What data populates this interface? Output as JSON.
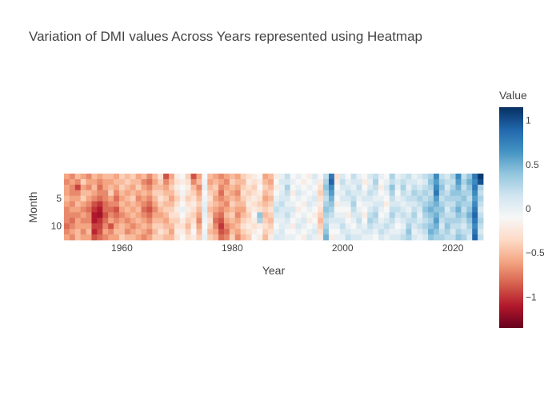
{
  "chart_data": {
    "type": "heatmap",
    "title": "Variation of DMI values Across Years represented using Heatmap",
    "xlabel": "Year",
    "ylabel": "Month",
    "colorbar_title": "Value",
    "x_range": [
      1949.5,
      2025.5
    ],
    "y_range": [
      0.5,
      12.5
    ],
    "x_ticks": [
      1960,
      1980,
      2000,
      2020
    ],
    "y_ticks": [
      5,
      10
    ],
    "colorbar_ticks": [
      1,
      0.5,
      0,
      -0.5,
      -1
    ],
    "zmin": -1.35,
    "zmax": 1.15,
    "colorscale": [
      "#67001f",
      "#b2182b",
      "#d6604d",
      "#f4a582",
      "#fddbc7",
      "#f7f7f7",
      "#d1e5f0",
      "#92c5de",
      "#4393c3",
      "#2166ac",
      "#053061"
    ],
    "years": [
      1950,
      1951,
      1952,
      1953,
      1954,
      1955,
      1956,
      1957,
      1958,
      1959,
      1960,
      1961,
      1962,
      1963,
      1964,
      1965,
      1966,
      1967,
      1968,
      1969,
      1970,
      1971,
      1972,
      1973,
      1974,
      1975,
      1976,
      1977,
      1978,
      1979,
      1980,
      1981,
      1982,
      1983,
      1984,
      1985,
      1986,
      1987,
      1988,
      1989,
      1990,
      1991,
      1992,
      1993,
      1994,
      1995,
      1996,
      1997,
      1998,
      1999,
      2000,
      2001,
      2002,
      2003,
      2004,
      2005,
      2006,
      2007,
      2008,
      2009,
      2010,
      2011,
      2012,
      2013,
      2014,
      2015,
      2016,
      2017,
      2018,
      2019,
      2020,
      2021,
      2022,
      2023,
      2024,
      2025
    ],
    "months": [
      1,
      2,
      3,
      4,
      5,
      6,
      7,
      8,
      9,
      10,
      11,
      12
    ],
    "values": [
      [
        -0.6,
        -0.7,
        -0.6,
        -0.6,
        -0.5,
        -0.6,
        -0.7,
        -0.7,
        -0.7,
        -0.8,
        -0.7,
        -0.6
      ],
      [
        -0.7,
        -0.6,
        -0.7,
        -0.7,
        -0.6,
        -0.7,
        -0.6,
        -0.7,
        -0.8,
        -0.7,
        -0.6,
        -0.7
      ],
      [
        -0.5,
        -0.7,
        -0.95,
        -0.7,
        -0.6,
        -0.5,
        -0.6,
        -0.7,
        -0.6,
        -0.6,
        -0.5,
        -0.5
      ],
      [
        -0.6,
        -0.4,
        -0.6,
        -0.5,
        -0.4,
        -0.6,
        -0.7,
        -0.6,
        -0.7,
        -0.6,
        -0.7,
        -0.6
      ],
      [
        -0.7,
        -0.6,
        -0.7,
        -0.5,
        -0.6,
        -0.7,
        -0.8,
        -0.7,
        -0.7,
        -0.6,
        -0.5,
        -0.6
      ],
      [
        -0.5,
        -0.6,
        -0.5,
        -0.6,
        -0.7,
        -0.9,
        -1.0,
        -1.1,
        -1.1,
        -0.95,
        -1.05,
        -0.9
      ],
      [
        -0.6,
        -0.7,
        -0.8,
        -0.7,
        -0.8,
        -1.0,
        -1.1,
        -1.15,
        -1.0,
        -0.95,
        -0.9,
        -0.8
      ],
      [
        -0.5,
        -0.6,
        -0.6,
        -0.7,
        -0.7,
        -0.8,
        -0.8,
        -0.9,
        -0.8,
        -0.7,
        -0.6,
        -0.7
      ],
      [
        -0.5,
        -0.6,
        -0.5,
        -0.4,
        -0.6,
        -0.7,
        -0.8,
        -0.7,
        -0.6,
        -0.9,
        -0.7,
        -0.6
      ],
      [
        -0.6,
        -0.5,
        -0.6,
        -0.7,
        -0.8,
        -0.7,
        -0.9,
        -0.8,
        -0.7,
        -0.6,
        -0.5,
        -0.6
      ],
      [
        -0.4,
        -0.5,
        -0.4,
        -0.5,
        -0.6,
        -0.5,
        -0.6,
        -0.7,
        -0.6,
        -0.5,
        -0.5,
        -0.4
      ],
      [
        -0.5,
        -0.4,
        -0.5,
        -0.6,
        -0.5,
        -0.6,
        -0.5,
        -0.6,
        -0.7,
        -0.6,
        -0.7,
        -0.5
      ],
      [
        -0.4,
        -0.5,
        -0.6,
        -0.5,
        -0.4,
        -0.5,
        -0.6,
        -0.5,
        -0.6,
        -0.7,
        -0.6,
        -0.5
      ],
      [
        -0.6,
        -0.5,
        -0.4,
        -0.6,
        -0.7,
        -0.6,
        -0.5,
        -0.6,
        -0.5,
        -0.6,
        -0.5,
        -0.6
      ],
      [
        -0.5,
        -0.7,
        -0.6,
        -0.5,
        -0.6,
        -0.7,
        -0.8,
        -0.7,
        -0.6,
        -0.5,
        -0.6,
        -0.7
      ],
      [
        -0.7,
        -0.8,
        -0.7,
        -0.6,
        -0.7,
        -0.8,
        -0.9,
        -0.8,
        -0.7,
        -0.6,
        -0.7,
        -0.6
      ],
      [
        -0.5,
        -0.6,
        -0.5,
        -0.4,
        -0.5,
        -0.6,
        -0.7,
        -0.6,
        -0.5,
        -0.4,
        -0.5,
        -0.4
      ],
      [
        -0.3,
        -0.4,
        -0.5,
        -0.4,
        -0.3,
        -0.4,
        -0.5,
        -0.6,
        -0.5,
        -0.4,
        -0.3,
        -0.4
      ],
      [
        -0.9,
        -0.7,
        -0.6,
        -0.5,
        -0.4,
        -0.5,
        -0.4,
        -0.5,
        -0.6,
        -0.5,
        -0.4,
        -0.5
      ],
      [
        -0.6,
        -0.5,
        -0.4,
        -0.5,
        -0.6,
        -0.5,
        -0.4,
        -0.3,
        -0.4,
        -0.5,
        -0.6,
        -0.5
      ],
      [
        -0.2,
        -0.3,
        -0.2,
        -0.3,
        -0.4,
        -0.3,
        -0.2,
        -0.3,
        -0.4,
        -0.3,
        -0.2,
        -0.3
      ],
      [
        -0.1,
        -0.2,
        -0.1,
        -0.05,
        -0.2,
        -0.1,
        0.0,
        -0.1,
        -0.2,
        -0.3,
        -0.2,
        -0.1
      ],
      [
        -0.4,
        -0.3,
        -0.2,
        -0.3,
        -0.4,
        -0.3,
        -0.2,
        -0.3,
        -0.4,
        -0.5,
        -0.4,
        -0.3
      ],
      [
        -0.9,
        -0.7,
        -0.5,
        -0.4,
        -0.3,
        -0.2,
        -0.3,
        -0.4,
        -0.3,
        -0.2,
        -0.1,
        -0.2
      ],
      [
        -0.6,
        -0.5,
        -0.7,
        -0.6,
        -0.5,
        -0.4,
        -0.5,
        -0.6,
        -0.7,
        -0.6,
        -0.5,
        -0.4
      ],
      [
        -0.1,
        -0.05,
        0.0,
        -0.1,
        -0.05,
        0.0,
        0.05,
        0.0,
        -0.05,
        -0.1,
        -0.05,
        0.0
      ],
      [
        -0.5,
        -0.6,
        -0.5,
        -0.4,
        -0.3,
        -0.4,
        -0.5,
        -0.4,
        -0.3,
        -0.4,
        -0.5,
        -0.4
      ],
      [
        -0.6,
        -0.5,
        -0.4,
        -0.5,
        -0.6,
        -0.5,
        -0.6,
        -0.7,
        -0.8,
        -0.7,
        -0.6,
        -0.5
      ],
      [
        -0.7,
        -0.6,
        -0.7,
        -0.8,
        -0.7,
        -0.6,
        -0.7,
        -0.8,
        -0.9,
        -1.0,
        -0.9,
        -0.8
      ],
      [
        -0.6,
        -0.7,
        -0.6,
        -0.5,
        -0.6,
        -0.7,
        -0.6,
        -0.5,
        -0.6,
        -0.7,
        -0.8,
        -0.7
      ],
      [
        -0.5,
        -0.4,
        -0.5,
        -0.6,
        -0.5,
        -0.4,
        -0.5,
        -0.4,
        -0.5,
        -0.6,
        -0.5,
        -0.4
      ],
      [
        -0.6,
        -0.5,
        -0.6,
        -0.7,
        -0.6,
        -0.5,
        -0.6,
        -0.7,
        -0.6,
        -0.5,
        -0.6,
        -0.7
      ],
      [
        -0.4,
        -0.5,
        -0.4,
        -0.3,
        -0.4,
        -0.5,
        -0.6,
        -0.5,
        -0.4,
        -0.3,
        -0.4,
        -0.5
      ],
      [
        -0.3,
        -0.2,
        -0.3,
        -0.4,
        -0.3,
        -0.2,
        -0.3,
        -0.4,
        -0.3,
        -0.2,
        -0.3,
        -0.4
      ],
      [
        -0.2,
        -0.3,
        -0.4,
        -0.3,
        -0.2,
        -0.3,
        -0.2,
        -0.1,
        -0.2,
        -0.3,
        -0.2,
        -0.1
      ],
      [
        -0.1,
        -0.2,
        -0.1,
        -0.2,
        -0.3,
        -0.4,
        -0.3,
        0.4,
        0.3,
        -0.2,
        -0.1,
        -0.2
      ],
      [
        -0.6,
        -0.5,
        -0.4,
        -0.5,
        -0.6,
        -0.5,
        -0.4,
        -0.5,
        -0.4,
        -0.3,
        -0.4,
        -0.5
      ],
      [
        -0.5,
        -0.6,
        -0.5,
        -0.4,
        -0.5,
        -0.4,
        -0.3,
        -0.4,
        -0.5,
        -0.4,
        -0.3,
        -0.2
      ],
      [
        -0.2,
        -0.1,
        -0.2,
        -0.1,
        0.0,
        0.1,
        0.2,
        0.1,
        0.0,
        -0.1,
        0.0,
        0.1
      ],
      [
        0.0,
        0.1,
        0.0,
        0.05,
        0.1,
        0.2,
        0.1,
        0.05,
        0.0,
        0.05,
        0.1,
        0.05
      ],
      [
        0.2,
        0.1,
        0.3,
        0.2,
        0.1,
        0.0,
        0.1,
        0.2,
        0.1,
        0.0,
        -0.1,
        0.0
      ],
      [
        -0.1,
        0.0,
        -0.1,
        -0.2,
        -0.1,
        0.0,
        0.1,
        0.0,
        -0.1,
        -0.2,
        -0.1,
        0.0
      ],
      [
        0.0,
        -0.1,
        0.0,
        0.1,
        0.0,
        -0.1,
        -0.2,
        -0.1,
        0.0,
        0.1,
        0.0,
        -0.1
      ],
      [
        -0.1,
        -0.2,
        -0.1,
        0.0,
        -0.1,
        -0.2,
        -0.1,
        0.0,
        0.1,
        0.0,
        -0.1,
        -0.2
      ],
      [
        -0.2,
        -0.1,
        0.0,
        -0.1,
        0.0,
        0.1,
        0.0,
        -0.1,
        -0.2,
        -0.1,
        0.0,
        0.1
      ],
      [
        0.1,
        0.0,
        -0.1,
        0.0,
        0.1,
        0.0,
        -0.1,
        -0.2,
        -0.1,
        0.0,
        0.1,
        0.0
      ],
      [
        -0.1,
        -0.2,
        -0.3,
        -0.4,
        -0.3,
        -0.2,
        -0.3,
        -0.4,
        -0.5,
        -0.4,
        -0.3,
        -0.2
      ],
      [
        0.2,
        0.3,
        0.4,
        0.3,
        0.2,
        0.3,
        0.4,
        0.3,
        0.2,
        0.3,
        0.4,
        0.5
      ],
      [
        0.8,
        0.9,
        0.7,
        0.6,
        0.5,
        0.4,
        0.3,
        0.2,
        0.1,
        0.0,
        -0.1,
        -0.2
      ],
      [
        -0.3,
        -0.2,
        -0.1,
        0.0,
        -0.1,
        -0.2,
        -0.1,
        0.0,
        0.1,
        0.0,
        -0.1,
        0.0
      ],
      [
        0.1,
        0.2,
        0.1,
        0.0,
        0.1,
        0.0,
        -0.1,
        0.0,
        0.1,
        0.2,
        0.1,
        0.0
      ],
      [
        -0.1,
        0.0,
        0.1,
        0.2,
        0.1,
        0.0,
        -0.1,
        -0.2,
        -0.1,
        0.0,
        0.1,
        0.2
      ],
      [
        0.2,
        0.1,
        0.0,
        0.1,
        0.2,
        0.3,
        0.2,
        0.1,
        0.0,
        -0.1,
        0.0,
        0.1
      ],
      [
        0.0,
        0.1,
        0.2,
        0.1,
        0.0,
        -0.1,
        0.0,
        0.1,
        0.2,
        0.1,
        0.0,
        0.1
      ],
      [
        -0.1,
        -0.2,
        -0.1,
        0.0,
        0.1,
        0.0,
        -0.1,
        -0.2,
        -0.1,
        0.0,
        0.1,
        0.0
      ],
      [
        0.1,
        0.0,
        0.1,
        0.2,
        0.1,
        0.0,
        0.1,
        0.2,
        0.3,
        0.2,
        0.1,
        0.0
      ],
      [
        0.2,
        0.3,
        0.2,
        0.1,
        0.0,
        0.1,
        0.2,
        0.3,
        0.2,
        0.1,
        0.0,
        -0.1
      ],
      [
        0.0,
        -0.1,
        -0.2,
        -0.1,
        0.0,
        0.1,
        0.0,
        -0.1,
        0.0,
        0.1,
        0.2,
        0.1
      ],
      [
        -0.1,
        0.0,
        0.1,
        0.0,
        -0.1,
        -0.2,
        -0.1,
        0.0,
        0.1,
        0.2,
        0.1,
        0.0
      ],
      [
        0.3,
        0.2,
        0.4,
        0.3,
        0.2,
        0.1,
        0.2,
        0.3,
        0.2,
        0.1,
        0.0,
        0.1
      ],
      [
        0.0,
        0.1,
        0.0,
        -0.1,
        0.0,
        0.1,
        0.2,
        0.1,
        0.0,
        -0.1,
        0.0,
        0.1
      ],
      [
        0.1,
        0.2,
        0.3,
        0.2,
        0.1,
        0.0,
        0.1,
        0.2,
        0.1,
        0.0,
        0.1,
        0.2
      ],
      [
        0.2,
        0.1,
        0.0,
        0.1,
        0.2,
        0.1,
        0.0,
        0.1,
        0.2,
        0.3,
        0.4,
        0.3
      ],
      [
        0.0,
        0.1,
        0.2,
        0.3,
        0.2,
        0.1,
        0.2,
        0.3,
        0.2,
        0.1,
        0.0,
        0.1
      ],
      [
        0.1,
        0.0,
        0.1,
        0.2,
        0.3,
        0.2,
        0.1,
        0.0,
        0.1,
        0.2,
        0.1,
        0.0
      ],
      [
        0.2,
        0.1,
        0.2,
        0.3,
        0.2,
        0.3,
        0.4,
        0.3,
        0.2,
        0.3,
        0.2,
        0.1
      ],
      [
        0.3,
        0.4,
        0.3,
        0.2,
        0.3,
        0.4,
        0.5,
        0.4,
        0.3,
        0.4,
        0.5,
        0.4
      ],
      [
        0.7,
        0.6,
        0.7,
        0.8,
        0.6,
        0.5,
        0.4,
        0.5,
        0.6,
        0.5,
        0.4,
        0.3
      ],
      [
        0.2,
        0.3,
        0.4,
        0.3,
        0.2,
        0.3,
        0.4,
        0.3,
        0.2,
        0.1,
        0.2,
        0.3
      ],
      [
        0.1,
        0.2,
        0.1,
        0.2,
        0.3,
        0.2,
        0.1,
        0.2,
        0.3,
        0.4,
        0.3,
        0.2
      ],
      [
        0.3,
        0.2,
        0.3,
        0.4,
        0.3,
        0.2,
        0.3,
        0.2,
        0.3,
        0.2,
        0.1,
        0.2
      ],
      [
        0.7,
        0.6,
        0.5,
        0.4,
        0.3,
        0.4,
        0.5,
        0.4,
        0.3,
        0.2,
        0.3,
        0.4
      ],
      [
        0.2,
        0.3,
        0.2,
        0.3,
        0.4,
        0.3,
        0.2,
        0.3,
        0.2,
        0.1,
        0.2,
        0.3
      ],
      [
        0.4,
        0.5,
        0.4,
        0.3,
        0.2,
        0.3,
        0.4,
        0.5,
        0.4,
        0.3,
        0.2,
        0.1
      ],
      [
        0.8,
        0.7,
        0.8,
        0.7,
        0.6,
        0.7,
        0.8,
        0.9,
        0.8,
        0.7,
        0.8,
        0.9
      ],
      [
        1.1,
        1.0,
        0.3,
        0.2,
        0.3,
        0.2,
        0.1,
        0.2,
        0.3,
        0.2,
        0.1,
        0.2
      ]
    ]
  }
}
